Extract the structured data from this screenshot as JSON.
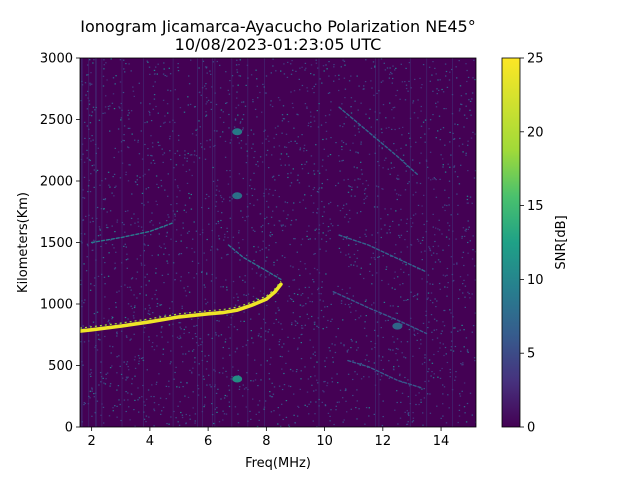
{
  "chart_data": {
    "type": "heatmap",
    "title_line1": "Ionogram Jicamarca-Ayacucho Polarization NE45°",
    "title_line2": "10/08/2023-01:23:05 UTC",
    "xlabel": "Freq(MHz)",
    "ylabel": "Kilometers(Km)",
    "xlim": [
      1.6,
      15.2
    ],
    "ylim": [
      0,
      3000
    ],
    "xticks": [
      2,
      4,
      6,
      8,
      10,
      12,
      14
    ],
    "yticks": [
      0,
      500,
      1000,
      1500,
      2000,
      2500,
      3000
    ],
    "colorbar": {
      "label": "SNR[dB]",
      "range": [
        0,
        25
      ],
      "ticks": [
        0,
        5,
        10,
        15,
        20,
        25
      ],
      "colormap": "viridis"
    },
    "grid": false,
    "background_color": "#440154",
    "traces": [
      {
        "name": "F-layer trace",
        "snr_db": 24,
        "points": [
          [
            1.6,
            780
          ],
          [
            2.0,
            790
          ],
          [
            3.0,
            820
          ],
          [
            4.0,
            855
          ],
          [
            5.0,
            895
          ],
          [
            6.0,
            920
          ],
          [
            6.5,
            930
          ],
          [
            7.0,
            950
          ],
          [
            7.5,
            990
          ],
          [
            8.0,
            1040
          ],
          [
            8.3,
            1100
          ],
          [
            8.5,
            1160
          ]
        ]
      },
      {
        "name": "Second hop trace",
        "snr_db": 9,
        "points": [
          [
            2.0,
            1500
          ],
          [
            3.0,
            1540
          ],
          [
            4.0,
            1590
          ],
          [
            4.8,
            1660
          ]
        ]
      },
      {
        "name": "Oblique echo 1",
        "snr_db": 8,
        "points": [
          [
            6.7,
            1480
          ],
          [
            7.2,
            1380
          ],
          [
            8.0,
            1270
          ],
          [
            8.5,
            1200
          ]
        ]
      },
      {
        "name": "Oblique echo 2",
        "snr_db": 7,
        "points": [
          [
            10.5,
            1560
          ],
          [
            11.5,
            1480
          ],
          [
            12.5,
            1370
          ],
          [
            13.5,
            1260
          ]
        ]
      },
      {
        "name": "Oblique echo 3",
        "snr_db": 7,
        "points": [
          [
            10.5,
            2600
          ],
          [
            11.5,
            2400
          ],
          [
            12.5,
            2200
          ],
          [
            13.2,
            2050
          ]
        ]
      },
      {
        "name": "Oblique echo 4",
        "snr_db": 6,
        "points": [
          [
            10.3,
            1100
          ],
          [
            11.5,
            970
          ],
          [
            12.5,
            870
          ],
          [
            13.5,
            760
          ]
        ]
      },
      {
        "name": "Oblique echo 5",
        "snr_db": 6,
        "points": [
          [
            10.8,
            540
          ],
          [
            11.5,
            490
          ],
          [
            12.5,
            380
          ],
          [
            13.3,
            320
          ]
        ]
      }
    ],
    "clusters": [
      {
        "name": "Echo cluster 1",
        "snr_db": 12,
        "x": 7.0,
        "y": 390
      },
      {
        "name": "Echo cluster 2",
        "snr_db": 10,
        "x": 7.0,
        "y": 2400
      },
      {
        "name": "Echo cluster 3",
        "snr_db": 9,
        "x": 7.0,
        "y": 1880
      },
      {
        "name": "Echo cluster 4",
        "snr_db": 8,
        "x": 12.5,
        "y": 820
      }
    ]
  }
}
